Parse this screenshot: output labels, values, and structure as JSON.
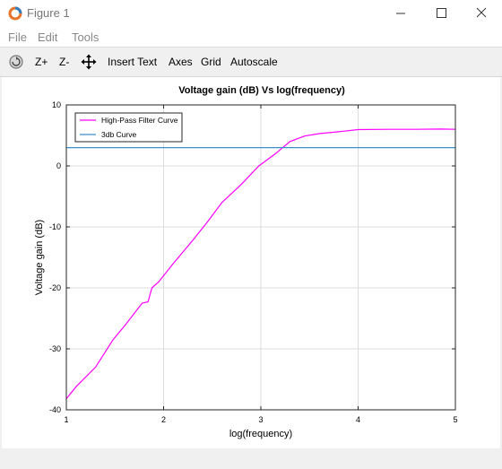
{
  "window": {
    "title": "Figure 1",
    "icon": "octave-logo-icon"
  },
  "menu": [
    "File",
    "Edit",
    "Tools"
  ],
  "toolbar": {
    "rotate_icon": "rotate-icon",
    "zoom_in": "Z+",
    "zoom_out": "Z-",
    "pan_icon": "pan-arrows-icon",
    "insert_text": "Insert Text",
    "axes": "Axes",
    "grid": "Grid",
    "autoscale": "Autoscale"
  },
  "chart_data": {
    "type": "line",
    "title": "Voltage gain (dB) Vs log(frequency)",
    "xlabel": "log(frequency)",
    "ylabel": "Voltage gain (dB)",
    "xlim": [
      1,
      5
    ],
    "ylim": [
      -40,
      10
    ],
    "xticks": [
      "1",
      "2",
      "3",
      "4",
      "5"
    ],
    "yticks": [
      "-40",
      "-30",
      "-20",
      "-10",
      "0",
      "10"
    ],
    "grid": true,
    "legend_position": "top-left",
    "series": [
      {
        "name": "High-Pass Filter Curve",
        "color": "#ff00ff",
        "x": [
          1,
          1.1,
          1.3,
          1.48,
          1.6,
          1.78,
          1.84,
          1.88,
          1.95,
          2.1,
          2.3,
          2.45,
          2.6,
          2.8,
          2.98,
          3.15,
          3.3,
          3.45,
          3.6,
          3.8,
          4.0,
          4.3,
          4.6,
          4.85,
          5
        ],
        "y": [
          -38.2,
          -36.2,
          -33,
          -28.5,
          -26.2,
          -22.5,
          -22.3,
          -20,
          -19,
          -16,
          -12.2,
          -9.2,
          -6,
          -3,
          0,
          2,
          4,
          4.9,
          5.3,
          5.6,
          5.95,
          6.0,
          6.0,
          6.05,
          6.0
        ]
      },
      {
        "name": "3db Curve",
        "color": "#3c8fcb",
        "x": [
          1,
          5
        ],
        "y": [
          3,
          3
        ]
      }
    ]
  }
}
